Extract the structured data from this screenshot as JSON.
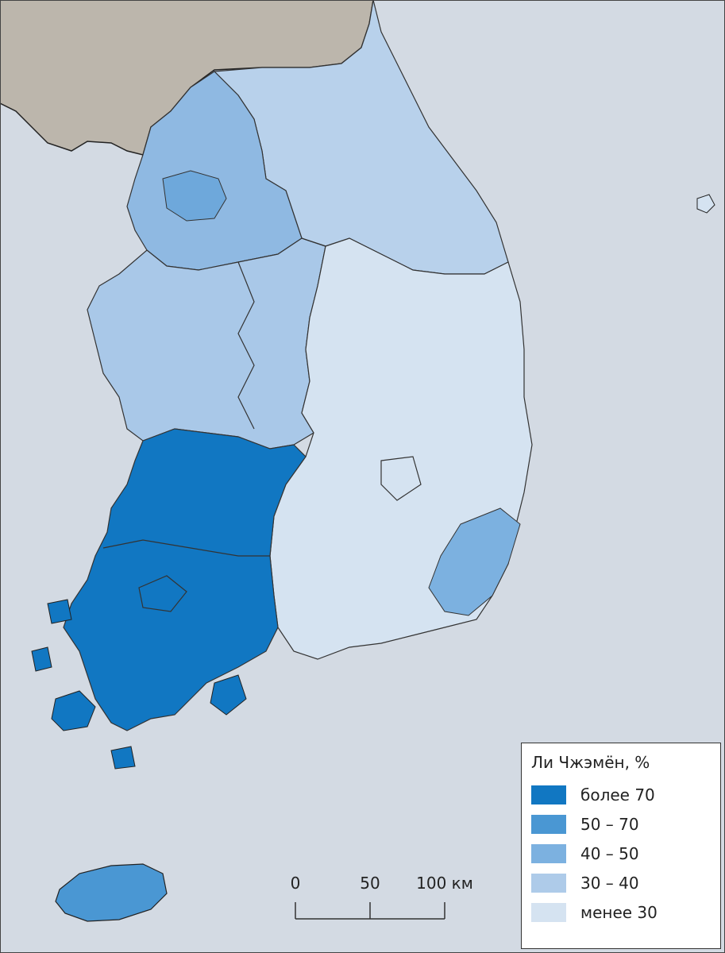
{
  "legend": {
    "title": "Ли Чжэмён, %",
    "items": [
      {
        "label": "более 70",
        "color": "#1177c2"
      },
      {
        "label": "50 – 70",
        "color": "#4a97d3"
      },
      {
        "label": "40 – 50",
        "color": "#7cb1e0"
      },
      {
        "label": "30 – 40",
        "color": "#aecbe9"
      },
      {
        "label": "менее 30",
        "color": "#d5e3f1"
      }
    ]
  },
  "scale": {
    "ticks": [
      "0",
      "50",
      "100 км"
    ]
  },
  "colors": {
    "sea": "#d3dae3",
    "north_land": "#bcb6ac"
  }
}
